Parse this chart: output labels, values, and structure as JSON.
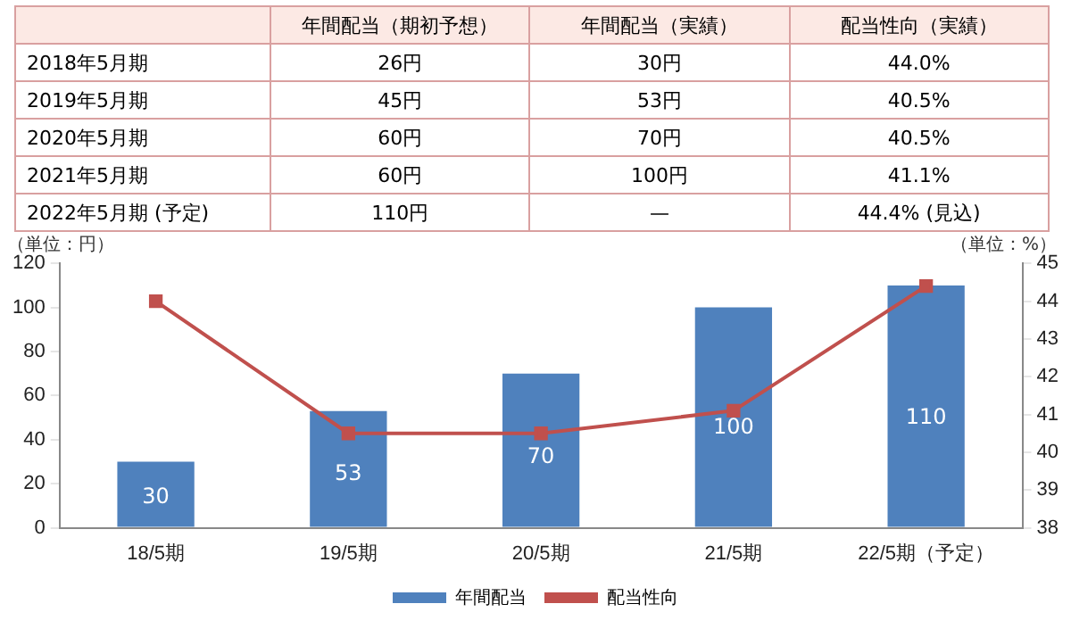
{
  "chart_data": [
    {
      "type": "other",
      "categories": [
        "年間配当（期初予想）",
        "年間配当（実績）",
        "配当性向（実績）"
      ],
      "y_categories": [
        "2018年5月期",
        "2019年5月期",
        "2020年5月期",
        "2021年5月期",
        "2022年5月期 (予定)"
      ],
      "cell_labels": [
        [
          "26円",
          "30円",
          "44.0%"
        ],
        [
          "45円",
          "53円",
          "40.5%"
        ],
        [
          "60円",
          "70円",
          "40.5%"
        ],
        [
          "60円",
          "100円",
          "41.1%"
        ],
        [
          "110円",
          "—",
          "44.4% (見込)"
        ]
      ]
    },
    {
      "type": "bar",
      "categories": [
        "18/5期",
        "19/5期",
        "20/5期",
        "21/5期",
        "22/5期（予定）"
      ],
      "series": [
        {
          "name": "年間配当",
          "color": "#4f81bd",
          "values": [
            30,
            53,
            70,
            100,
            110
          ],
          "value_labels": [
            "30",
            "53",
            "70",
            "100",
            "110"
          ]
        },
        {
          "name": "配当性向",
          "type": "line",
          "axis": "y2",
          "color": "#c0504d",
          "values": [
            44.0,
            40.5,
            40.5,
            41.1,
            44.4
          ]
        }
      ],
      "ylabel": "（単位：円）",
      "y2label": "（単位：%）",
      "ylim": [
        0,
        120
      ],
      "yticks": [
        0,
        20,
        40,
        60,
        80,
        100,
        120
      ],
      "y2lim": [
        38,
        45
      ],
      "y2ticks": [
        38,
        39,
        40,
        41,
        42,
        43,
        44,
        45
      ],
      "grid": false,
      "legend": "bottom",
      "marker": "square",
      "line_style": "solid"
    }
  ]
}
